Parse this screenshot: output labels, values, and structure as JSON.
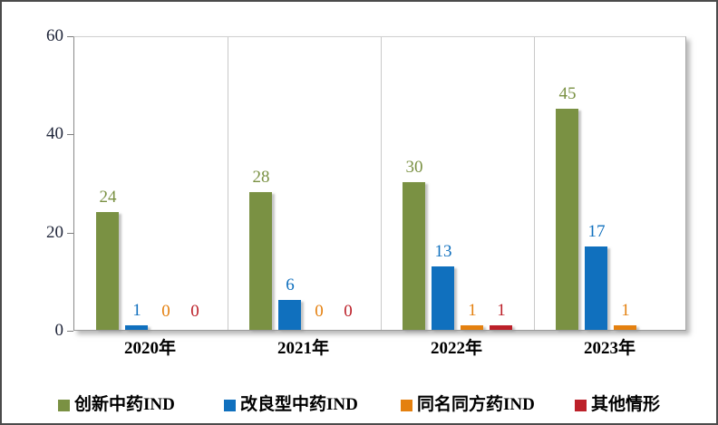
{
  "figure": {
    "background_color": "#ffffff",
    "outer_border_color": "#4b4b4b"
  },
  "axis": {
    "tick_label_color": "#20263a",
    "axis_line_color": "#8a8a8a",
    "separator_color": "#c9c9c9"
  },
  "chart_data": {
    "type": "bar",
    "title": "",
    "xlabel": "",
    "ylabel": "",
    "categories": [
      "2020年",
      "2021年",
      "2022年",
      "2023年"
    ],
    "series": [
      {
        "name": "创新中药IND",
        "color": "#7a9143",
        "values": [
          24,
          28,
          30,
          45
        ]
      },
      {
        "name": "改良型中药IND",
        "color": "#1070be",
        "values": [
          1,
          6,
          13,
          17
        ]
      },
      {
        "name": "同名同方药IND",
        "color": "#e4800f",
        "values": [
          0,
          0,
          1,
          1
        ]
      },
      {
        "name": "其他情形",
        "color": "#bc2029",
        "values": [
          0,
          0,
          1,
          null
        ]
      }
    ],
    "ylim": [
      0,
      60
    ],
    "yticks": [
      "0",
      "20",
      "40",
      "60"
    ],
    "grid": "vertical category separators only",
    "legend_position": "bottom",
    "value_labels_shown": true,
    "note_null_value": "2023年 其他情形 has no bar and no data label displayed"
  }
}
